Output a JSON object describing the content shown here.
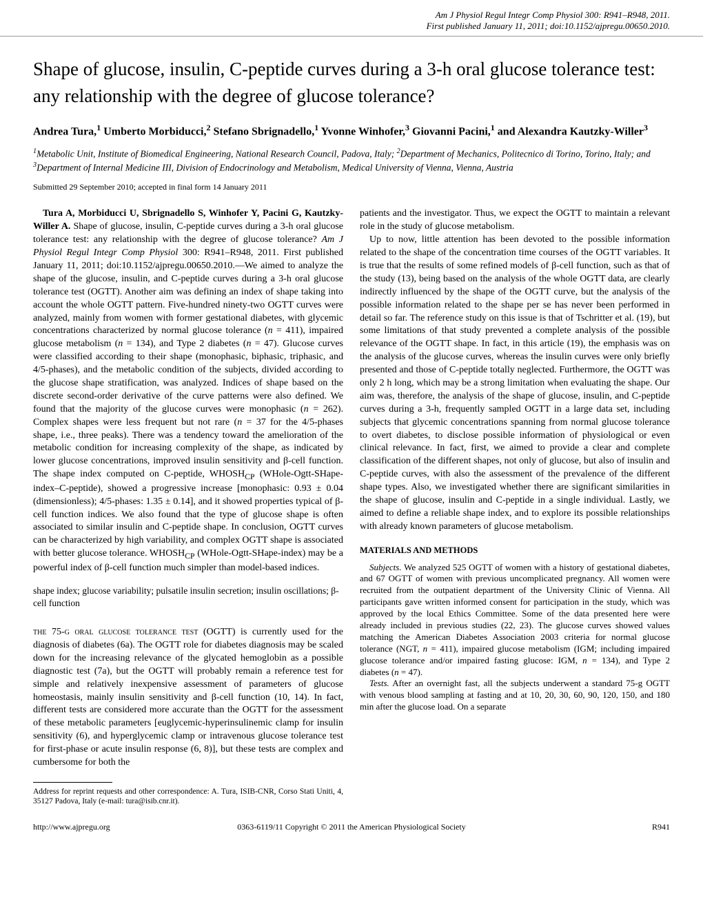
{
  "header": {
    "journal_line": "Am J Physiol Regul Integr Comp Physiol 300: R941–R948, 2011.",
    "doi_line": "First published January 11, 2011; doi:10.1152/ajpregu.00650.2010."
  },
  "title": "Shape of glucose, insulin, C-peptide curves during a 3-h oral glucose tolerance test: any relationship with the degree of glucose tolerance?",
  "authors_html": "Andrea Tura,<sup>1</sup> Umberto Morbiducci,<sup>2</sup> Stefano Sbrignadello,<sup>1</sup> Yvonne Winhofer,<sup>3</sup> Giovanni Pacini,<sup>1</sup> and Alexandra Kautzky-Willer<sup>3</sup>",
  "affiliations_html": "<sup>1</sup>Metabolic Unit, Institute of Biomedical Engineering, National Research Council, Padova, Italy; <sup>2</sup>Department of Mechanics, Politecnico di Torino, Torino, Italy; and <sup>3</sup>Department of Internal Medicine III, Division of Endocrinology and Metabolism, Medical University of Vienna, Vienna, Austria",
  "submission": "Submitted 29 September 2010; accepted in final form 14 January 2011",
  "abstract": {
    "author_cite": "Tura A, Morbiducci U, Sbrignadello S, Winhofer Y, Pacini G, Kautzky-Willer A.",
    "body_html": " Shape of glucose, insulin, C-peptide curves during a 3-h oral glucose tolerance test: any relationship with the degree of glucose tolerance? <i>Am J Physiol Regul Integr Comp Physiol</i> 300: R941–R948, 2011. First published January 11, 2011; doi:10.1152/ajpregu.00650.2010.—We aimed to analyze the shape of the glucose, insulin, and C-peptide curves during a 3-h oral glucose tolerance test (OGTT). Another aim was defining an index of shape taking into account the whole OGTT pattern. Five-hundred ninety-two OGTT curves were analyzed, mainly from women with former gestational diabetes, with glycemic concentrations characterized by normal glucose tolerance (<i>n</i> = 411), impaired glucose metabolism (<i>n</i> = 134), and Type 2 diabetes (<i>n</i> = 47). Glucose curves were classified according to their shape (monophasic, biphasic, triphasic, and 4/5-phases), and the metabolic condition of the subjects, divided according to the glucose shape stratification, was analyzed. Indices of shape based on the discrete second-order derivative of the curve patterns were also defined. We found that the majority of the glucose curves were monophasic (<i>n</i> = 262). Complex shapes were less frequent but not rare (<i>n</i> = 37 for the 4/5-phases shape, i.e., three peaks). There was a tendency toward the amelioration of the metabolic condition for increasing complexity of the shape, as indicated by lower glucose concentrations, improved insulin sensitivity and β-cell function. The shape index computed on C-peptide, WHOSH<sub>CP</sub> (WHole-Ogtt-SHape-index–C-peptide), showed a progressive increase [monophasic: 0.93 ± 0.04 (dimensionless); 4/5-phases: 1.35 ± 0.14], and it showed properties typical of β-cell function indices. We also found that the type of glucose shape is often associated to similar insulin and C-peptide shape. In conclusion, OGTT curves can be characterized by high variability, and complex OGTT shape is associated with better glucose tolerance. WHOSH<sub>CP</sub> (WHole-Ogtt-SHape-index) may be a powerful index of β-cell function much simpler than model-based indices."
  },
  "keywords": "shape index; glucose variability; pulsatile insulin secretion; insulin oscillations; β-cell function",
  "intro_lead": "THE 75-G ORAL GLUCOSE TOLERANCE TEST",
  "intro_rest": " (OGTT) is currently used for the diagnosis of diabetes (6a). The OGTT role for diabetes diagnosis may be scaled down for the increasing relevance of the glycated hemoglobin as a possible diagnostic test (7a), but the OGTT will probably remain a reference test for simple and relatively inexpensive assessment of parameters of glucose homeostasis, mainly insulin sensitivity and β-cell function (10, 14). In fact, different tests are considered more accurate than the OGTT for the assessment of these metabolic parameters [euglycemic-hyperinsulinemic clamp for insulin sensitivity (6), and hyperglycemic clamp or intravenous glucose tolerance test for first-phase or acute insulin response (6, 8)], but these tests are complex and cumbersome for both the",
  "correspondence": "Address for reprint requests and other correspondence: A. Tura, ISIB-CNR, Corso Stati Uniti, 4, 35127 Padova, Italy (e-mail: tura@isib.cnr.it).",
  "right_col": {
    "para1": "patients and the investigator. Thus, we expect the OGTT to maintain a relevant role in the study of glucose metabolism.",
    "para2": "Up to now, little attention has been devoted to the possible information related to the shape of the concentration time courses of the OGTT variables. It is true that the results of some refined models of β-cell function, such as that of the study (13), being based on the analysis of the whole OGTT data, are clearly indirectly influenced by the shape of the OGTT curve, but the analysis of the possible information related to the shape per se has never been performed in detail so far. The reference study on this issue is that of Tschritter et al. (19), but some limitations of that study prevented a complete analysis of the possible relevance of the OGTT shape. In fact, in this article (19), the emphasis was on the analysis of the glucose curves, whereas the insulin curves were only briefly presented and those of C-peptide totally neglected. Furthermore, the OGTT was only 2 h long, which may be a strong limitation when evaluating the shape. Our aim was, therefore, the analysis of the shape of glucose, insulin, and C-peptide curves during a 3-h, frequently sampled OGTT in a large data set, including subjects that glycemic concentrations spanning from normal glucose tolerance to overt diabetes, to disclose possible information of physiological or even clinical relevance. In fact, first, we aimed to provide a clear and complete classification of the different shapes, not only of glucose, but also of insulin and C-peptide curves, with also the assessment of the prevalence of the different shape types. Also, we investigated whether there are significant similarities in the shape of glucose, insulin and C-peptide in a single individual. Lastly, we aimed to define a reliable shape index, and to explore its possible relationships with already known parameters of glucose metabolism."
  },
  "methods": {
    "heading": "MATERIALS AND METHODS",
    "subjects_head": "Subjects.",
    "subjects_html": " We analyzed 525 OGTT of women with a history of gestational diabetes, and 67 OGTT of women with previous uncomplicated pregnancy. All women were recruited from the outpatient department of the University Clinic of Vienna. All participants gave written informed consent for participation in the study, which was approved by the local Ethics Committee. Some of the data presented here were already included in previous studies (22, 23). The glucose curves showed values matching the American Diabetes Association 2003 criteria for normal glucose tolerance (NGT, <i>n</i> = 411), impaired glucose metabolism (IGM; including impaired glucose tolerance and/or impaired fasting glucose: IGM, <i>n</i> = 134), and Type 2 diabetes (<i>n</i> = 47).",
    "tests_head": "Tests.",
    "tests_text": " After an overnight fast, all the subjects underwent a standard 75-g OGTT with venous blood sampling at fasting and at 10, 20, 30, 60, 90, 120, 150, and 180 min after the glucose load. On a separate"
  },
  "footer": {
    "left": "http://www.ajpregu.org",
    "center": "0363-6119/11 Copyright © 2011 the American Physiological Society",
    "right": "R941"
  }
}
